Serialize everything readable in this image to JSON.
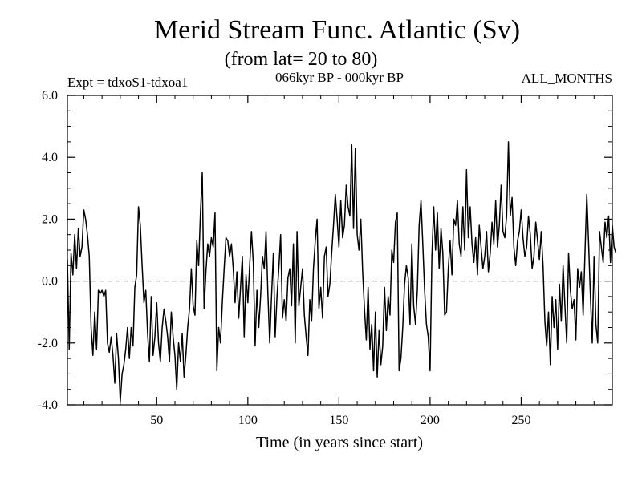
{
  "chart_data": {
    "type": "line",
    "title": "Merid Stream Func. Atlantic (Sv)",
    "subtitle": "(from lat= 20 to 80)",
    "annotation_left": "Expt = tdxoS1-tdxoa1",
    "annotation_center": "066kyr BP - 000kyr BP",
    "annotation_right": "ALL_MONTHS",
    "xlabel": "Time (in years since start)",
    "ylabel": "",
    "xlim": [
      1,
      300
    ],
    "ylim": [
      -4.0,
      6.0
    ],
    "xticks": [
      50,
      100,
      150,
      200,
      250
    ],
    "xtick_labels": [
      "50",
      "100",
      "150",
      "200",
      "250"
    ],
    "yticks": [
      -4.0,
      -2.0,
      0.0,
      2.0,
      4.0,
      6.0
    ],
    "ytick_labels": [
      "-4.0",
      "-2.0",
      "0.0",
      "2.0",
      "4.0",
      "6.0"
    ],
    "reference_line": 0.0,
    "series": [
      {
        "name": "tdxoS1-tdxoa1",
        "x_start": 1,
        "x_step": 1,
        "values": [
          0.7,
          -2.2,
          0.9,
          0.2,
          1.5,
          0.4,
          1.7,
          0.8,
          1.1,
          2.3,
          2.0,
          1.5,
          0.8,
          -1.5,
          -2.4,
          -1.0,
          -2.2,
          -0.3,
          -0.4,
          -0.3,
          -0.5,
          -0.3,
          -2.0,
          -2.3,
          -1.8,
          -2.4,
          -3.3,
          -1.7,
          -2.5,
          -3.9,
          -3.0,
          -2.7,
          -2.2,
          -1.5,
          -2.5,
          -1.5,
          -2.1,
          -0.2,
          0.2,
          2.4,
          1.8,
          0.5,
          -0.7,
          -0.3,
          -1.7,
          -2.6,
          -0.5,
          -2.4,
          -1.8,
          -0.7,
          -2.0,
          -2.6,
          -1.5,
          -0.9,
          -1.3,
          -1.8,
          -2.6,
          -1.0,
          -1.8,
          -2.4,
          -3.5,
          -2.0,
          -2.6,
          -1.7,
          -3.1,
          -2.4,
          -1.5,
          -0.9,
          0.4,
          -0.8,
          -1.1,
          1.3,
          0.5,
          2.2,
          3.5,
          -0.9,
          0.3,
          1.2,
          0.8,
          1.4,
          1.1,
          2.2,
          -2.9,
          -1.5,
          -2.0,
          -0.7,
          0.4,
          1.4,
          1.3,
          0.8,
          1.2,
          0.4,
          -0.7,
          0.3,
          -1.2,
          -0.2,
          0.8,
          -1.8,
          0.2,
          -0.7,
          0.5,
          1.6,
          0.6,
          -2.1,
          -0.3,
          -1.5,
          -0.5,
          0.8,
          0.4,
          1.6,
          -0.4,
          -2.0,
          -0.5,
          0.9,
          -1.8,
          -0.5,
          0.4,
          1.5,
          -1.2,
          -0.6,
          -1.3,
          0.1,
          0.4,
          -0.8,
          1.2,
          -2.0,
          1.6,
          -0.8,
          -0.2,
          0.4,
          -1.1,
          -1.8,
          -2.4,
          -0.6,
          -1.3,
          0.4,
          1.3,
          2.0,
          -0.9,
          -0.2,
          -1.2,
          0.8,
          1.1,
          -0.5,
          -0.1,
          0.9,
          1.8,
          2.8,
          2.0,
          1.1,
          2.6,
          1.4,
          1.8,
          3.1,
          2.4,
          2.1,
          4.4,
          1.7,
          4.3,
          1.5,
          1.0,
          2.0,
          0.3,
          -0.9,
          -1.9,
          -0.2,
          -2.2,
          -1.4,
          -2.9,
          -1.0,
          -3.1,
          -1.6,
          -2.7,
          -2.1,
          -0.2,
          -1.6,
          -0.5,
          -1.1,
          1.0,
          0.6,
          1.9,
          2.2,
          -2.9,
          -2.5,
          -1.5,
          -0.1,
          0.5,
          0.1,
          -1.4,
          1.2,
          -0.8,
          -1.4,
          -0.3,
          1.8,
          2.6,
          1.2,
          -0.3,
          -1.4,
          -1.8,
          -2.9,
          0.8,
          2.4,
          1.0,
          2.2,
          0.4,
          1.7,
          0.9,
          -1.1,
          -1.0,
          0.4,
          1.3,
          0.2,
          2.0,
          1.8,
          2.6,
          1.2,
          0.8,
          2.4,
          1.0,
          3.6,
          1.4,
          2.4,
          1.2,
          0.6,
          1.4,
          0.2,
          1.8,
          1.1,
          0.4,
          0.8,
          1.6,
          0.3,
          0.9,
          1.9,
          1.2,
          2.6,
          1.1,
          1.8,
          3.1,
          1.6,
          1.4,
          2.1,
          4.5,
          2.1,
          2.7,
          1.1,
          0.5,
          1.3,
          1.6,
          2.3,
          1.4,
          0.8,
          1.1,
          2.1,
          1.5,
          0.4,
          0.8,
          1.9,
          1.3,
          0.7,
          1.6,
          0.5,
          -1.3,
          -2.1,
          -1.0,
          -2.7,
          -0.5,
          -1.5,
          -0.6,
          -2.2,
          -0.1,
          -1.3,
          0.5,
          -0.8,
          -2.0,
          0.9,
          -0.3,
          -0.9,
          -0.6,
          -1.9,
          0.4,
          -0.2,
          0.3,
          -1.1,
          0.9,
          2.8,
          1.2,
          -0.5,
          -2.0,
          0.8,
          -1.4,
          -2.0,
          1.6,
          1.1,
          0.6,
          1.9,
          1.4,
          2.1,
          0.6,
          1.8,
          1.1,
          0.9
        ]
      }
    ]
  }
}
